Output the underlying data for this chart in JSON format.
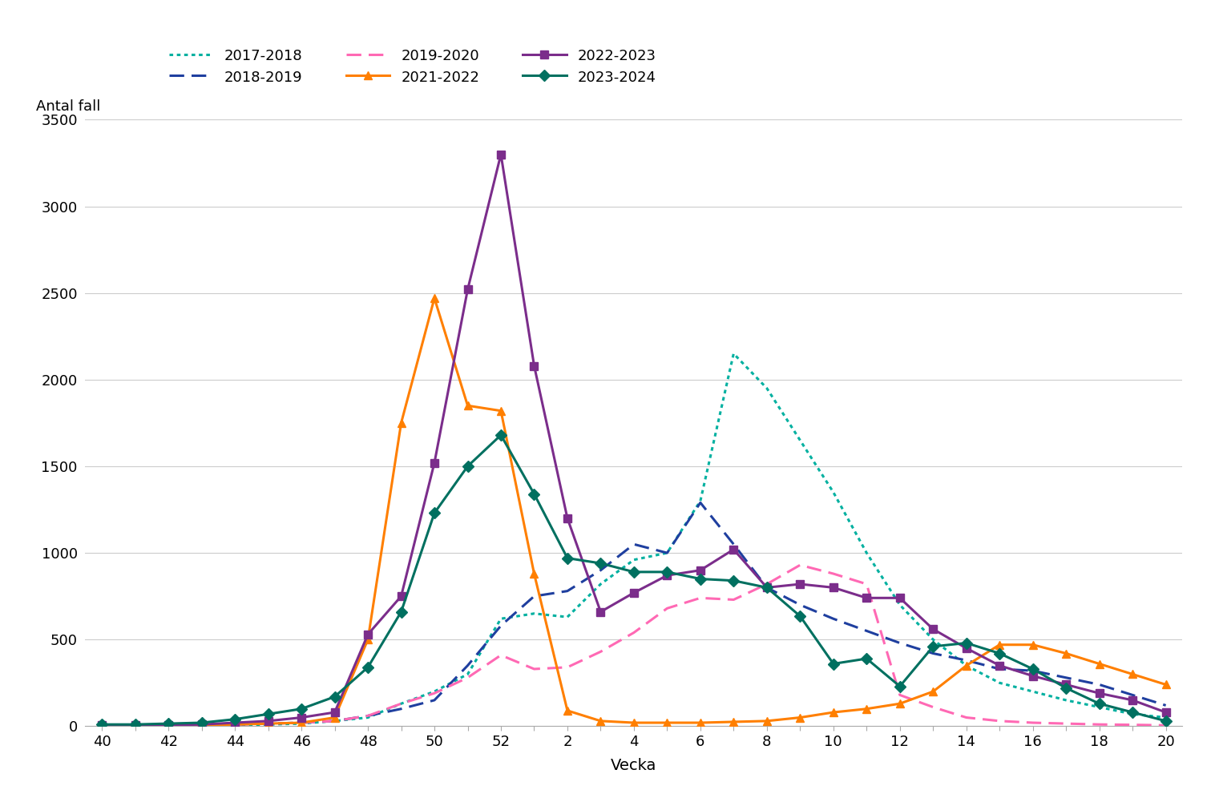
{
  "xlabel": "Vecka",
  "ylabel": "Antal fall",
  "ylim": [
    0,
    3500
  ],
  "yticks": [
    0,
    500,
    1000,
    1500,
    2000,
    2500,
    3000,
    3500
  ],
  "background_color": "#ffffff",
  "x_order": [
    40,
    41,
    42,
    43,
    44,
    45,
    46,
    47,
    48,
    49,
    50,
    51,
    52,
    1,
    2,
    3,
    4,
    5,
    6,
    7,
    8,
    9,
    10,
    11,
    12,
    13,
    14,
    15,
    16,
    17,
    18,
    19,
    20
  ],
  "x_tick_labels": [
    "40",
    "",
    "42",
    "",
    "44",
    "",
    "46",
    "",
    "48",
    "",
    "50",
    "",
    "52",
    "",
    "2",
    "",
    "4",
    "",
    "6",
    "",
    "8",
    "",
    "10",
    "",
    "12",
    "",
    "14",
    "",
    "16",
    "",
    "18",
    "",
    "20"
  ],
  "series": [
    {
      "label": "2017-2018",
      "color": "#00b0a0",
      "linestyle": "dotted",
      "linewidth": 2.2,
      "marker": null,
      "markersize": 0,
      "data": {
        "40": 5,
        "41": 5,
        "42": 5,
        "43": 5,
        "44": 5,
        "45": 10,
        "46": 15,
        "47": 30,
        "48": 50,
        "49": 130,
        "50": 200,
        "51": 300,
        "52": 620,
        "1": 650,
        "2": 630,
        "3": 820,
        "4": 960,
        "5": 1000,
        "6": 1300,
        "7": 2150,
        "8": 1950,
        "9": 1650,
        "10": 1350,
        "11": 1000,
        "12": 700,
        "13": 500,
        "14": 350,
        "15": 250,
        "16": 200,
        "17": 150,
        "18": 110,
        "19": 70,
        "20": 50
      }
    },
    {
      "label": "2018-2019",
      "color": "#1f3f9f",
      "linestyle": "dashed",
      "linewidth": 2.2,
      "marker": null,
      "markersize": 0,
      "data": {
        "40": 5,
        "41": 5,
        "42": 5,
        "43": 10,
        "44": 10,
        "45": 15,
        "46": 20,
        "47": 30,
        "48": 60,
        "49": 100,
        "50": 150,
        "51": 350,
        "52": 580,
        "1": 750,
        "2": 780,
        "3": 900,
        "4": 1050,
        "5": 1000,
        "6": 1290,
        "7": 1050,
        "8": 800,
        "9": 700,
        "10": 620,
        "11": 550,
        "12": 480,
        "13": 420,
        "14": 380,
        "15": 330,
        "16": 320,
        "17": 280,
        "18": 240,
        "19": 180,
        "20": 120
      }
    },
    {
      "label": "2019-2020",
      "color": "#ff69b4",
      "linestyle": "dashed",
      "linewidth": 2.2,
      "marker": null,
      "markersize": 0,
      "data": {
        "40": 5,
        "41": 5,
        "42": 5,
        "43": 5,
        "44": 10,
        "45": 15,
        "46": 20,
        "47": 30,
        "48": 60,
        "49": 130,
        "50": 190,
        "51": 280,
        "52": 410,
        "1": 330,
        "2": 340,
        "3": 430,
        "4": 540,
        "5": 680,
        "6": 740,
        "7": 730,
        "8": 820,
        "9": 930,
        "10": 880,
        "11": 820,
        "12": 180,
        "13": 110,
        "14": 50,
        "15": 30,
        "16": 20,
        "17": 15,
        "18": 10,
        "19": 8,
        "20": 5
      }
    },
    {
      "label": "2021-2022",
      "color": "#ff7f00",
      "linestyle": "solid",
      "linewidth": 2.2,
      "marker": "^",
      "markersize": 7,
      "data": {
        "40": 5,
        "41": 5,
        "42": 5,
        "43": 5,
        "44": 10,
        "45": 15,
        "46": 20,
        "47": 50,
        "48": 500,
        "49": 1750,
        "50": 2470,
        "51": 1850,
        "52": 1820,
        "1": 880,
        "2": 90,
        "3": 30,
        "4": 20,
        "5": 20,
        "6": 20,
        "7": 25,
        "8": 30,
        "9": 50,
        "10": 80,
        "11": 100,
        "12": 130,
        "13": 200,
        "14": 350,
        "15": 470,
        "16": 470,
        "17": 420,
        "18": 360,
        "19": 300,
        "20": 240
      }
    },
    {
      "label": "2022-2023",
      "color": "#7b2d8b",
      "linestyle": "solid",
      "linewidth": 2.2,
      "marker": "s",
      "markersize": 7,
      "data": {
        "40": 5,
        "41": 5,
        "42": 5,
        "43": 10,
        "44": 20,
        "45": 30,
        "46": 50,
        "47": 80,
        "48": 530,
        "49": 750,
        "50": 1520,
        "51": 2520,
        "52": 3300,
        "1": 2080,
        "2": 1200,
        "3": 660,
        "4": 770,
        "5": 870,
        "6": 900,
        "7": 1020,
        "8": 800,
        "9": 820,
        "10": 800,
        "11": 740,
        "12": 740,
        "13": 560,
        "14": 450,
        "15": 350,
        "16": 290,
        "17": 240,
        "18": 190,
        "19": 150,
        "20": 80
      }
    },
    {
      "label": "2023-2024",
      "color": "#007060",
      "linestyle": "solid",
      "linewidth": 2.2,
      "marker": "D",
      "markersize": 7,
      "data": {
        "40": 10,
        "41": 10,
        "42": 15,
        "43": 20,
        "44": 40,
        "45": 70,
        "46": 100,
        "47": 170,
        "48": 340,
        "49": 660,
        "50": 1230,
        "51": 1500,
        "52": 1680,
        "1": 1340,
        "2": 970,
        "3": 940,
        "4": 890,
        "5": 890,
        "6": 850,
        "7": 840,
        "8": 800,
        "9": 635,
        "10": 360,
        "11": 390,
        "12": 230,
        "13": 460,
        "14": 480,
        "15": 420,
        "16": 330,
        "17": 220,
        "18": 130,
        "19": 80,
        "20": 30
      }
    }
  ]
}
